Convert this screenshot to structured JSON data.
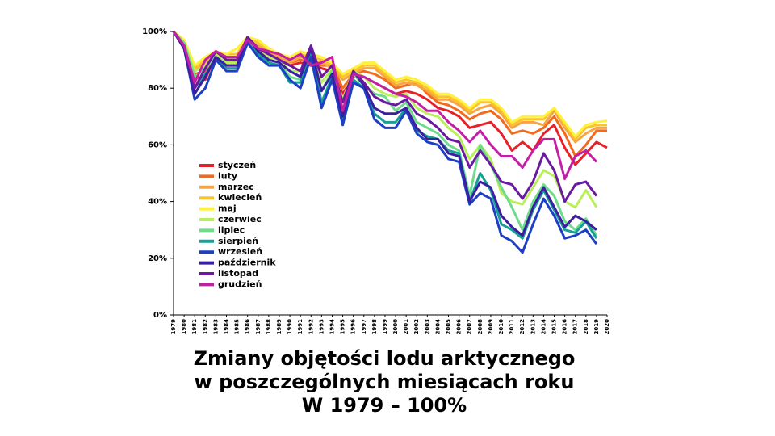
{
  "chart_data": {
    "type": "line",
    "title_lines": [
      "Zmiany objętości lodu arktycznego",
      "w poszczególnych miesiącach roku",
      "W 1979 – 100%"
    ],
    "x": [
      1979,
      1980,
      1981,
      1982,
      1983,
      1984,
      1985,
      1986,
      1987,
      1988,
      1989,
      1990,
      1991,
      1992,
      1993,
      1994,
      1995,
      1996,
      1997,
      1998,
      1999,
      2000,
      2001,
      2002,
      2003,
      2004,
      2005,
      2006,
      2007,
      2008,
      2009,
      2010,
      2011,
      2012,
      2013,
      2014,
      2015,
      2016,
      2017,
      2018,
      2019,
      2020
    ],
    "xlim": [
      1979,
      2020
    ],
    "xticks": [
      1979,
      1980,
      1981,
      1982,
      1983,
      1984,
      1985,
      1986,
      1987,
      1988,
      1989,
      1990,
      1991,
      1992,
      1993,
      1994,
      1995,
      1996,
      1997,
      1998,
      1999,
      2000,
      2001,
      2002,
      2003,
      2004,
      2005,
      2006,
      2007,
      2008,
      2009,
      2010,
      2011,
      2012,
      2013,
      2014,
      2015,
      2016,
      2017,
      2018,
      2019,
      2020
    ],
    "ylim": [
      0,
      100
    ],
    "yticks": [
      {
        "value": 0,
        "label": "0%"
      },
      {
        "value": 20,
        "label": "20%"
      },
      {
        "value": 40,
        "label": "40%"
      },
      {
        "value": 60,
        "label": "60%"
      },
      {
        "value": 80,
        "label": "80%"
      },
      {
        "value": 100,
        "label": "100%"
      }
    ],
    "legend": "lower-left",
    "series": [
      {
        "name": "styczeń",
        "color": "#e8202a",
        "values": [
          100,
          95,
          84,
          83,
          92,
          89,
          89,
          96,
          93,
          92,
          90,
          88,
          89,
          88,
          87,
          86,
          78,
          84,
          84,
          82,
          80,
          78,
          79,
          78,
          76,
          73,
          72,
          70,
          66,
          67,
          68,
          64,
          58,
          61,
          58,
          64,
          67,
          59,
          53,
          57,
          61,
          59
        ]
      },
      {
        "name": "luty",
        "color": "#f26a1b",
        "values": [
          100,
          96,
          85,
          86,
          93,
          90,
          90,
          97,
          94,
          93,
          91,
          89,
          90,
          89,
          88,
          88,
          80,
          85,
          86,
          85,
          83,
          80,
          81,
          82,
          78,
          75,
          74,
          72,
          69,
          71,
          72,
          69,
          64,
          65,
          64,
          66,
          70,
          64,
          56,
          60,
          65,
          65
        ]
      },
      {
        "name": "marzec",
        "color": "#f7a541",
        "values": [
          100,
          96,
          86,
          89,
          93,
          91,
          91,
          97,
          95,
          93,
          91,
          89,
          91,
          90,
          89,
          87,
          83,
          85,
          87,
          87,
          84,
          81,
          82,
          81,
          79,
          76,
          76,
          74,
          71,
          73,
          74,
          71,
          66,
          68,
          68,
          67,
          72,
          66,
          61,
          64,
          66,
          66
        ]
      },
      {
        "name": "kwiecień",
        "color": "#fcc42a",
        "values": [
          100,
          97,
          87,
          90,
          93,
          92,
          92,
          98,
          96,
          94,
          92,
          90,
          92,
          91,
          90,
          88,
          84,
          86,
          88,
          88,
          85,
          82,
          83,
          82,
          80,
          77,
          77,
          75,
          72,
          75,
          75,
          72,
          67,
          69,
          69,
          69,
          73,
          67,
          62,
          66,
          67,
          67
        ]
      },
      {
        "name": "maj",
        "color": "#fff23a",
        "values": [
          100,
          97,
          88,
          91,
          93,
          92,
          94,
          98,
          97,
          94,
          92,
          91,
          93,
          92,
          91,
          89,
          85,
          87,
          89,
          89,
          86,
          83,
          84,
          83,
          81,
          78,
          78,
          76,
          73,
          76,
          76,
          73,
          68,
          70,
          70,
          70,
          73,
          68,
          63,
          67,
          68,
          68.5
        ]
      },
      {
        "name": "czerwiec",
        "color": "#b8ef5a",
        "values": [
          100,
          96,
          86,
          88,
          92,
          89,
          89,
          96,
          93,
          91,
          90,
          86,
          86,
          92,
          82,
          87,
          76,
          86,
          84,
          80,
          78,
          77,
          78,
          73,
          71,
          70,
          66,
          63,
          55,
          60,
          55,
          43,
          40,
          39,
          45,
          51,
          49,
          40,
          38,
          44,
          38,
          null
        ]
      },
      {
        "name": "lipiec",
        "color": "#6fdc8c",
        "values": [
          100,
          96,
          84,
          87,
          91,
          88,
          88,
          96,
          93,
          90,
          89,
          84,
          83,
          92,
          79,
          86,
          72,
          85,
          81,
          78,
          77,
          72,
          75,
          68,
          66,
          64,
          60,
          58,
          42,
          60,
          53,
          45,
          38,
          30,
          40,
          46,
          42,
          33,
          30,
          34,
          28,
          null
        ]
      },
      {
        "name": "sierpień",
        "color": "#16a096",
        "values": [
          100,
          95,
          80,
          85,
          90,
          87,
          87,
          96,
          92,
          89,
          88,
          82,
          82,
          93,
          75,
          84,
          69,
          83,
          80,
          71,
          68,
          68,
          73,
          65,
          63,
          62,
          58,
          57,
          40,
          50,
          44,
          32,
          30,
          27,
          37,
          44,
          37,
          30,
          29,
          33,
          27,
          null
        ]
      },
      {
        "name": "wrzesień",
        "color": "#1d3fc4",
        "values": [
          100,
          94,
          76,
          80,
          90,
          86,
          86,
          96,
          91,
          88,
          88,
          83,
          80,
          91,
          73,
          83,
          67,
          82,
          80,
          69,
          66,
          66,
          72,
          64,
          61,
          60,
          55,
          54,
          39,
          43,
          41,
          28,
          26,
          22,
          32,
          41,
          35,
          27,
          28,
          30,
          25,
          null
        ]
      },
      {
        "name": "październik",
        "color": "#3b1fa0",
        "values": [
          100,
          94,
          78,
          84,
          91,
          88,
          88,
          98,
          93,
          90,
          89,
          86,
          84,
          94,
          79,
          85,
          70,
          86,
          81,
          73,
          71,
          71,
          73,
          66,
          62,
          62,
          57,
          56,
          40,
          47,
          45,
          35,
          31,
          28,
          38,
          45,
          38,
          31,
          35,
          33,
          30,
          null
        ]
      },
      {
        "name": "listopad",
        "color": "#6a1aa0",
        "values": [
          100,
          95,
          80,
          87,
          93,
          90,
          90,
          98,
          94,
          92,
          90,
          88,
          86,
          95,
          84,
          88,
          75,
          86,
          82,
          77,
          75,
          74,
          76,
          71,
          69,
          66,
          62,
          61,
          52,
          58,
          53,
          47,
          46,
          41,
          47,
          57,
          51,
          40,
          46,
          47,
          42,
          null
        ]
      },
      {
        "name": "grudzień",
        "color": "#c41ea6",
        "values": [
          100,
          95,
          82,
          90,
          93,
          91,
          91,
          97,
          94,
          93,
          92,
          90,
          92,
          88,
          89,
          91,
          72,
          85,
          84,
          82,
          80,
          78,
          77,
          75,
          72,
          72,
          68,
          65,
          61,
          65,
          60,
          56,
          56,
          52,
          58,
          62,
          62,
          48,
          56,
          58,
          54,
          null
        ]
      }
    ]
  }
}
